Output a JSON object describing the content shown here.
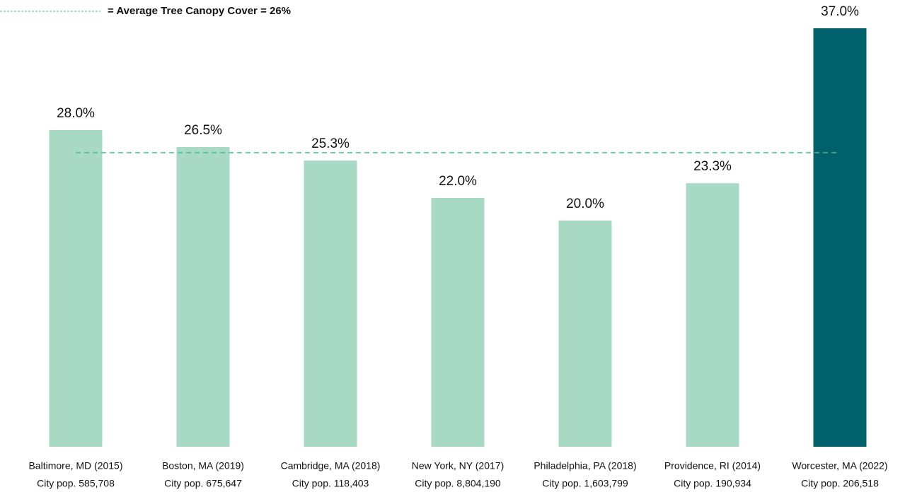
{
  "chart_data": {
    "type": "bar",
    "categories": [
      "Baltimore, MD (2015)",
      "Boston, MA  (2019)",
      "Cambridge, MA (2018)",
      "New York, NY (2017)",
      "Philadelphia, PA (2018)",
      "Providence, RI (2014)",
      "Worcester, MA (2022)"
    ],
    "category_notes": [
      "City pop. 585,708",
      "City pop. 675,647",
      "City pop. 118,403",
      "City pop. 8,804,190",
      "City pop. 1,603,799",
      "City pop. 190,934",
      "City pop. 206,518"
    ],
    "values": [
      28.0,
      26.5,
      25.3,
      22.0,
      20.0,
      23.3,
      37.0
    ],
    "value_labels": [
      "28.0%",
      "26.5%",
      "25.3%",
      "22.0%",
      "20.0%",
      "23.3%",
      "37.0%"
    ],
    "colors": [
      "#a8d9c5",
      "#a8d9c5",
      "#a8d9c5",
      "#a8d9c5",
      "#a8d9c5",
      "#a8d9c5",
      "#00606b"
    ],
    "ylim": [
      0,
      37
    ],
    "reference_line": {
      "value": 26,
      "label": "= Average Tree Canopy Cover = 26%",
      "color": "#3cbf9a"
    }
  }
}
